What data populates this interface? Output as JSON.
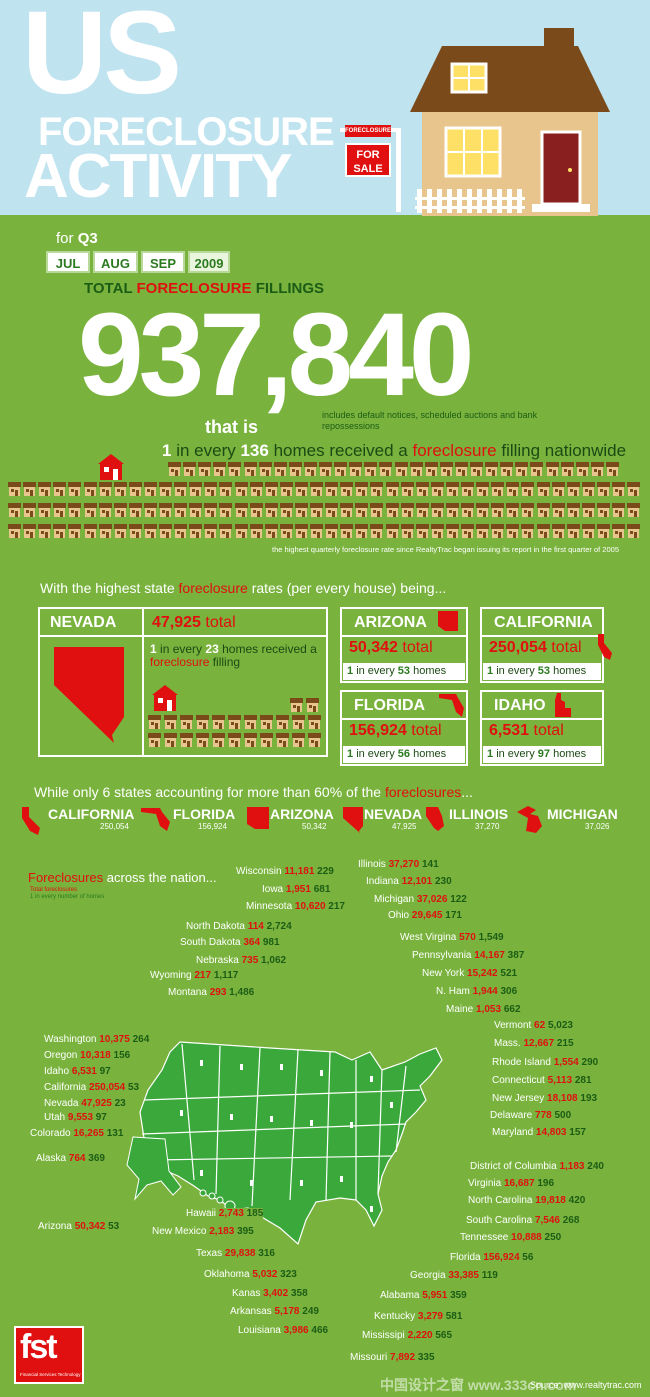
{
  "header": {
    "title_us": "US",
    "title_foreclosure": "FORECLOSURE",
    "title_activity": "ACTIVITY",
    "sign_small": "FORECLOSURE",
    "sign_big_1": "FOR",
    "sign_big_2": "SALE"
  },
  "period": {
    "for": "for",
    "quarter": "Q3",
    "months": [
      "JUL",
      "AUG",
      "SEP",
      "2009"
    ]
  },
  "totals": {
    "label_a": "TOTAL",
    "label_b": "FORECLOSURE",
    "label_c": "FILLINGS",
    "big_number": "937,840",
    "that_is": "that is",
    "note": "includes default notices, scheduled auctions and bank repossessions",
    "one": "1",
    "in_every": "in every",
    "n136": "136",
    "homes_received": "homes received a",
    "foreclosure": "foreclosure",
    "filling_nationwide": "filling nationwide",
    "record_note": "the highest quarterly foreclosure rate since RealtyTrac began issuing its report in the first quarter of 2005"
  },
  "highest": {
    "a": "With the highest state",
    "b": "foreclosure",
    "c": "rates (per every house) being..."
  },
  "states_top": [
    {
      "name": "NEVADA",
      "total": "47,925",
      "total_word": "total",
      "one": "1",
      "in_every": "in every",
      "ratio": "23",
      "homes": "homes received",
      "a": "a",
      "foreclosure": "foreclosure",
      "filling": "filling"
    },
    {
      "name": "ARIZONA",
      "total": "50,342",
      "total_word": "total",
      "one": "1",
      "in_every": "in every",
      "ratio": "53",
      "homes": "homes"
    },
    {
      "name": "CALIFORNIA",
      "total": "250,054",
      "total_word": "total",
      "one": "1",
      "in_every": "in every",
      "ratio": "53",
      "homes": "homes"
    },
    {
      "name": "FLORIDA",
      "total": "156,924",
      "total_word": "total",
      "one": "1",
      "in_every": "in every",
      "ratio": "56",
      "homes": "homes"
    },
    {
      "name": "IDAHO",
      "total": "6,531",
      "total_word": "total",
      "one": "1",
      "in_every": "in every",
      "ratio": "97",
      "homes": "homes"
    }
  ],
  "six": {
    "a": "While only 6 states accounting for more than 60% of the",
    "b": "foreclosures",
    "c": "...",
    "items": [
      {
        "name": "CALIFORNIA",
        "num": "250,054"
      },
      {
        "name": "FLORIDA",
        "num": "156,924"
      },
      {
        "name": "ARIZONA",
        "num": "50,342"
      },
      {
        "name": "NEVADA",
        "num": "47,925"
      },
      {
        "name": "ILLINOIS",
        "num": "37,270"
      },
      {
        "name": "MICHIGAN",
        "num": "37,026"
      }
    ]
  },
  "nation": {
    "a": "Foreclosures",
    "b": "across the nation...",
    "legend_total": "Total foreclosures",
    "legend_ratio": "1 in every number of homes"
  },
  "map_labels": [
    {
      "s": "Wisconsin",
      "t": "11,181",
      "n": "229"
    },
    {
      "s": "Iowa",
      "t": "1,951",
      "n": "681"
    },
    {
      "s": "Minnesota",
      "t": "10,620",
      "n": "217"
    },
    {
      "s": "North Dakota",
      "t": "114",
      "n": "2,724"
    },
    {
      "s": "South Dakota",
      "t": "364",
      "n": "981"
    },
    {
      "s": "Nebraska",
      "t": "735",
      "n": "1,062"
    },
    {
      "s": "Wyoming",
      "t": "217",
      "n": "1,117"
    },
    {
      "s": "Montana",
      "t": "293",
      "n": "1,486"
    },
    {
      "s": "Washington",
      "t": "10,375",
      "n": "264"
    },
    {
      "s": "Oregon",
      "t": "10,318",
      "n": "156"
    },
    {
      "s": "Idaho",
      "t": "6,531",
      "n": "97"
    },
    {
      "s": "California",
      "t": "250,054",
      "n": "53"
    },
    {
      "s": "Nevada",
      "t": "47,925",
      "n": "23"
    },
    {
      "s": "Utah",
      "t": "9,553",
      "n": "97"
    },
    {
      "s": "Colorado",
      "t": "16,265",
      "n": "131"
    },
    {
      "s": "Alaska",
      "t": "764",
      "n": "369"
    },
    {
      "s": "Arizona",
      "t": "50,342",
      "n": "53"
    },
    {
      "s": "Hawaii",
      "t": "2,743",
      "n": "185"
    },
    {
      "s": "New Mexico",
      "t": "2,183",
      "n": "395"
    },
    {
      "s": "Texas",
      "t": "29,838",
      "n": "316"
    },
    {
      "s": "Oklahoma",
      "t": "5,032",
      "n": "323"
    },
    {
      "s": "Kanas",
      "t": "3,402",
      "n": "358"
    },
    {
      "s": "Arkansas",
      "t": "5,178",
      "n": "249"
    },
    {
      "s": "Louisiana",
      "t": "3,986",
      "n": "466"
    },
    {
      "s": "Illinois",
      "t": "37,270",
      "n": "141"
    },
    {
      "s": "Indiana",
      "t": "12,101",
      "n": "230"
    },
    {
      "s": "Michigan",
      "t": "37,026",
      "n": "122"
    },
    {
      "s": "Ohio",
      "t": "29,645",
      "n": "171"
    },
    {
      "s": "West Virgina",
      "t": "570",
      "n": "1,549"
    },
    {
      "s": "Pennsylvania",
      "t": "14,167",
      "n": "387"
    },
    {
      "s": "New York",
      "t": "15,242",
      "n": "521"
    },
    {
      "s": "N. Ham",
      "t": "1,944",
      "n": "306"
    },
    {
      "s": "Maine",
      "t": "1,053",
      "n": "662"
    },
    {
      "s": "Vermont",
      "t": "62",
      "n": "5,023"
    },
    {
      "s": "Mass.",
      "t": "12,667",
      "n": "215"
    },
    {
      "s": "Rhode Island",
      "t": "1,554",
      "n": "290"
    },
    {
      "s": "Connecticut",
      "t": "5,113",
      "n": "281"
    },
    {
      "s": "New Jersey",
      "t": "18,108",
      "n": "193"
    },
    {
      "s": "Delaware",
      "t": "778",
      "n": "500"
    },
    {
      "s": "Maryland",
      "t": "14,803",
      "n": "157"
    },
    {
      "s": "District of Columbia",
      "t": "1,183",
      "n": "240"
    },
    {
      "s": "Virginia",
      "t": "16,687",
      "n": "196"
    },
    {
      "s": "North Carolina",
      "t": "19,818",
      "n": "420"
    },
    {
      "s": "South Carolina",
      "t": "7,546",
      "n": "268"
    },
    {
      "s": "Tennessee",
      "t": "10,888",
      "n": "250"
    },
    {
      "s": "Florida",
      "t": "156,924",
      "n": "56"
    },
    {
      "s": "Georgia",
      "t": "33,385",
      "n": "119"
    },
    {
      "s": "Alabama",
      "t": "5,951",
      "n": "359"
    },
    {
      "s": "Kentucky",
      "t": "3,279",
      "n": "581"
    },
    {
      "s": "Mississipi",
      "t": "2,220",
      "n": "565"
    },
    {
      "s": "Missouri",
      "t": "7,892",
      "n": "335"
    }
  ],
  "footer": {
    "logo": "fst",
    "logo_sub": "Financial Services Technology",
    "source": "Source: www.realtytrac.com",
    "watermark": "中国设计之窗 www.333cn.com"
  },
  "colors": {
    "sky": "#bfe3ef",
    "green": "#79b33d",
    "red": "#e01010",
    "dark_green": "#1c5d15"
  }
}
